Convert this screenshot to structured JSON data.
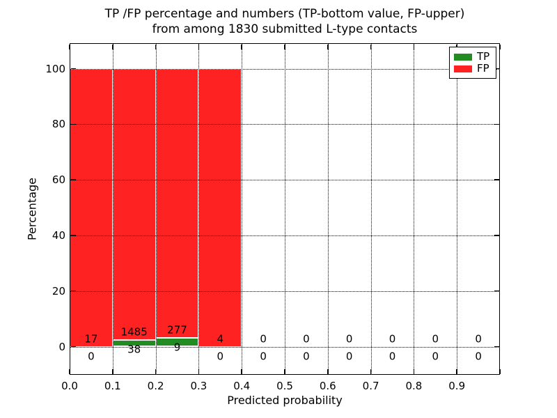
{
  "chart_data": {
    "type": "bar",
    "title_line1": "TP /FP percentage and numbers (TP-bottom value, FP-upper)",
    "title_line2": "from among 1830 submitted L-type contacts",
    "xlabel": "Predicted probability",
    "ylabel": "Percentage",
    "total_contacts": 1830,
    "xlim": [
      0.0,
      1.0
    ],
    "ylim": [
      -10,
      110
    ],
    "grid": true,
    "x_tick_labels": [
      "0.0",
      "0.1",
      "0.2",
      "0.3",
      "0.4",
      "0.5",
      "0.6",
      "0.7",
      "0.8",
      "0.9"
    ],
    "y_tick_values": [
      0,
      20,
      40,
      60,
      80,
      100
    ],
    "y_tick_labels": [
      "0",
      "20",
      "40",
      "60",
      "80",
      "100"
    ],
    "legend": {
      "position": "upper right",
      "entries": [
        {
          "label": "TP",
          "color": "#228b22"
        },
        {
          "label": "FP",
          "color": "#ff2222"
        }
      ]
    },
    "colors": {
      "tp": "#228b22",
      "fp": "#ff2222",
      "bar_edge": "#ffffff",
      "grid": "#000000"
    },
    "bins": [
      {
        "x0": 0.0,
        "x1": 0.1,
        "tp": 0,
        "fp": 17
      },
      {
        "x0": 0.1,
        "x1": 0.2,
        "tp": 38,
        "fp": 1485
      },
      {
        "x0": 0.2,
        "x1": 0.3,
        "tp": 9,
        "fp": 277
      },
      {
        "x0": 0.3,
        "x1": 0.4,
        "tp": 0,
        "fp": 4
      },
      {
        "x0": 0.4,
        "x1": 0.5,
        "tp": 0,
        "fp": 0
      },
      {
        "x0": 0.5,
        "x1": 0.6,
        "tp": 0,
        "fp": 0
      },
      {
        "x0": 0.6,
        "x1": 0.7,
        "tp": 0,
        "fp": 0
      },
      {
        "x0": 0.7,
        "x1": 0.8,
        "tp": 0,
        "fp": 0
      },
      {
        "x0": 0.8,
        "x1": 0.9,
        "tp": 0,
        "fp": 0
      },
      {
        "x0": 0.9,
        "x1": 1.0,
        "tp": 0,
        "fp": 0
      }
    ]
  }
}
